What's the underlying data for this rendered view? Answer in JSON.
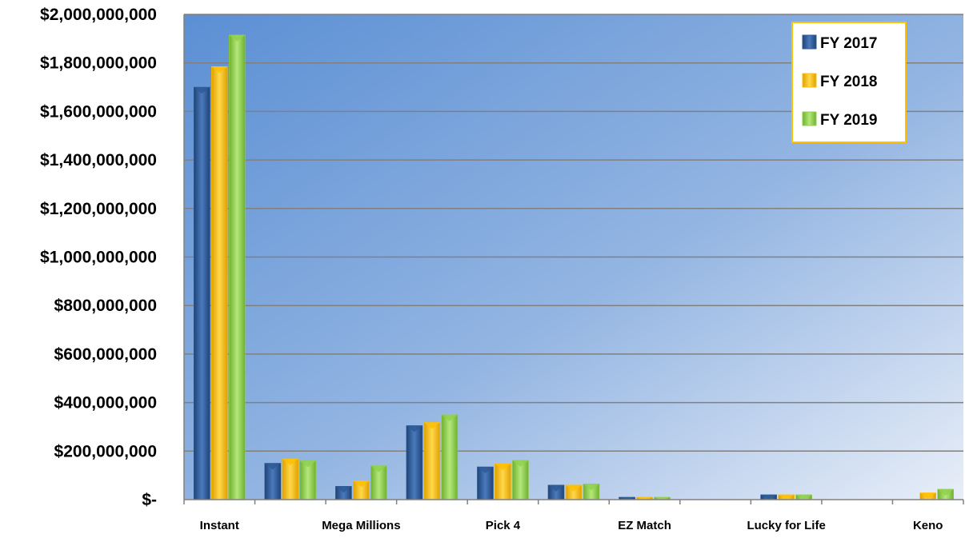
{
  "chart_data": {
    "type": "bar",
    "title": "",
    "xlabel": "",
    "ylabel": "",
    "ylim": [
      0,
      2000000000
    ],
    "grid": true,
    "legend_position": "top-right",
    "y_tick_values": [
      0,
      200000000,
      400000000,
      600000000,
      800000000,
      1000000000,
      1200000000,
      1400000000,
      1600000000,
      1800000000,
      2000000000
    ],
    "y_tick_labels": [
      "$-",
      "$200,000,000",
      "$400,000,000",
      "$600,000,000",
      "$800,000,000",
      "$1,000,000,000",
      "$1,200,000,000",
      "$1,400,000,000",
      "$1,600,000,000",
      "$1,800,000,000",
      "$2,000,000,000"
    ],
    "categories": [
      "Instant",
      "",
      "Mega Millions",
      "",
      "Pick 4",
      "",
      "EZ Match",
      "",
      "Lucky for Life",
      "",
      "Keno"
    ],
    "x_tick_labels": [
      "Instant",
      "Mega Millions",
      "Pick 4",
      "EZ Match",
      "Lucky for Life",
      "Keno"
    ],
    "series": [
      {
        "name": "FY 2017",
        "color": "#2e5b95",
        "values": [
          1700000000,
          150000000,
          55000000,
          305000000,
          135000000,
          60000000,
          10000000,
          0,
          20000000,
          0,
          0
        ]
      },
      {
        "name": "FY 2018",
        "color": "#ffc000",
        "values": [
          1785000000,
          168000000,
          78000000,
          318000000,
          148000000,
          60000000,
          10000000,
          0,
          20000000,
          0,
          28000000
        ]
      },
      {
        "name": "FY 2019",
        "color": "#8fd14f",
        "values": [
          1915000000,
          160000000,
          140000000,
          350000000,
          162000000,
          65000000,
          10000000,
          0,
          20000000,
          0,
          43000000
        ]
      }
    ]
  }
}
